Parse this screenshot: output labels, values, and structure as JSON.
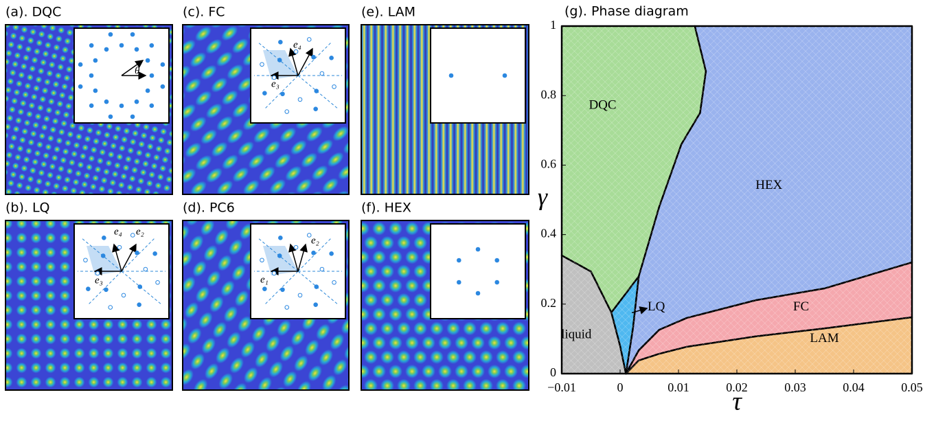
{
  "panels": [
    {
      "title": "(a). DQC",
      "inset_labels": [
        "θ"
      ]
    },
    {
      "title": "(b). LQ",
      "inset_labels": [
        "e₄",
        "e₂",
        "e₃"
      ]
    },
    {
      "title": "(c). FC",
      "inset_labels": [
        "e₄",
        "e₃"
      ]
    },
    {
      "title": "(d). PC6",
      "inset_labels": [
        "e₂",
        "e₁"
      ]
    },
    {
      "title": "(e). LAM"
    },
    {
      "title": "(f). HEX"
    }
  ],
  "chart_data": {
    "type": "phase",
    "title": "(g). Phase diagram",
    "x_label": "τ",
    "y_label": "γ",
    "xlim": [
      -0.01,
      0.05
    ],
    "ylim": [
      0,
      1
    ],
    "xticks": [
      {
        "value": -0.01,
        "label": "−0.01"
      },
      0,
      0.01,
      0.02,
      0.03,
      0.04,
      0.05
    ],
    "yticks": [
      0,
      0.2,
      0.4,
      0.6,
      0.8,
      1
    ],
    "regions": [
      {
        "name": "liquid",
        "color": "#c0c0c0",
        "x": [
          -0.01,
          -0.005,
          -0.0015,
          0,
          0.001,
          -0.01
        ],
        "y": [
          0.34,
          0.294,
          0.176,
          0.08,
          0,
          0
        ]
      },
      {
        "name": "LQ",
        "color": "#4fb8f0",
        "x": [
          -0.0015,
          0.0032,
          0.0022,
          0.001,
          0
        ],
        "y": [
          0.176,
          0.28,
          0.13,
          0,
          0.08
        ]
      },
      {
        "name": "DQC",
        "color": "#a8dc98",
        "x": [
          -0.01,
          0.0128,
          0.0147,
          0.0137,
          0.0105,
          0.0067,
          0.0032,
          -0.0015,
          -0.005,
          -0.01
        ],
        "y": [
          1,
          1,
          0.87,
          0.75,
          0.66,
          0.48,
          0.28,
          0.176,
          0.294,
          0.34
        ]
      },
      {
        "name": "HEX",
        "color": "#9ab3ee",
        "x": [
          0.0128,
          0.05,
          0.05,
          0.035,
          0.0232,
          0.0114,
          0.0067,
          0.0032,
          0.001,
          0.0022,
          0.0032,
          0.0067,
          0.0105,
          0.0137,
          0.0147
        ],
        "y": [
          1,
          1,
          0.32,
          0.245,
          0.211,
          0.16,
          0.126,
          0.067,
          0,
          0.13,
          0.28,
          0.48,
          0.66,
          0.75,
          0.87
        ]
      },
      {
        "name": "FC",
        "color": "#f5a8ae",
        "x": [
          0.001,
          0.0032,
          0.0067,
          0.0114,
          0.0232,
          0.035,
          0.05,
          0.05,
          0.035,
          0.0232,
          0.0114,
          0.0067,
          0.0032
        ],
        "y": [
          0,
          0.067,
          0.126,
          0.16,
          0.211,
          0.245,
          0.32,
          0.162,
          0.13,
          0.107,
          0.077,
          0.057,
          0.038
        ]
      },
      {
        "name": "LAM",
        "color": "#f5c487",
        "x": [
          0.001,
          0.0032,
          0.0067,
          0.0114,
          0.0232,
          0.035,
          0.05,
          0.05
        ],
        "y": [
          0,
          0.038,
          0.057,
          0.077,
          0.107,
          0.13,
          0.162,
          0
        ]
      }
    ]
  }
}
